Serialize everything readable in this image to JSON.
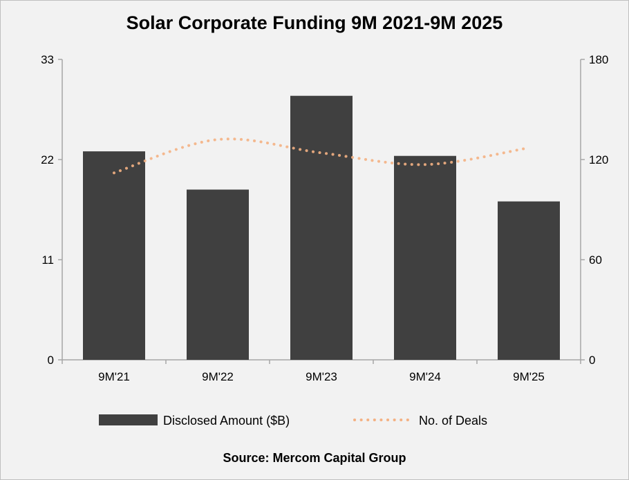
{
  "chart_data": {
    "type": "bar",
    "title": "Solar Corporate Funding 9M 2021-9M 2025",
    "source": "Source: Mercom Capital Group",
    "categories": [
      "9M'21",
      "9M'22",
      "9M'23",
      "9M'24",
      "9M'25"
    ],
    "series": [
      {
        "name": "Disclosed Amount ($B)",
        "type": "bar",
        "axis": "left",
        "color": "#404040",
        "values": [
          22.9,
          18.7,
          29.0,
          22.4,
          17.4
        ]
      },
      {
        "name": "No. of Deals",
        "type": "line",
        "style": "dotted",
        "axis": "right",
        "color": "#f4b183",
        "values": [
          112,
          132,
          124,
          117,
          127
        ]
      }
    ],
    "left_axis": {
      "ylim": [
        0,
        33
      ],
      "ticks": [
        "0",
        "11",
        "22",
        "33"
      ]
    },
    "right_axis": {
      "ylim": [
        0,
        180
      ],
      "ticks": [
        "0",
        "60",
        "120",
        "180"
      ]
    },
    "grid": false,
    "legend_position": "bottom"
  }
}
